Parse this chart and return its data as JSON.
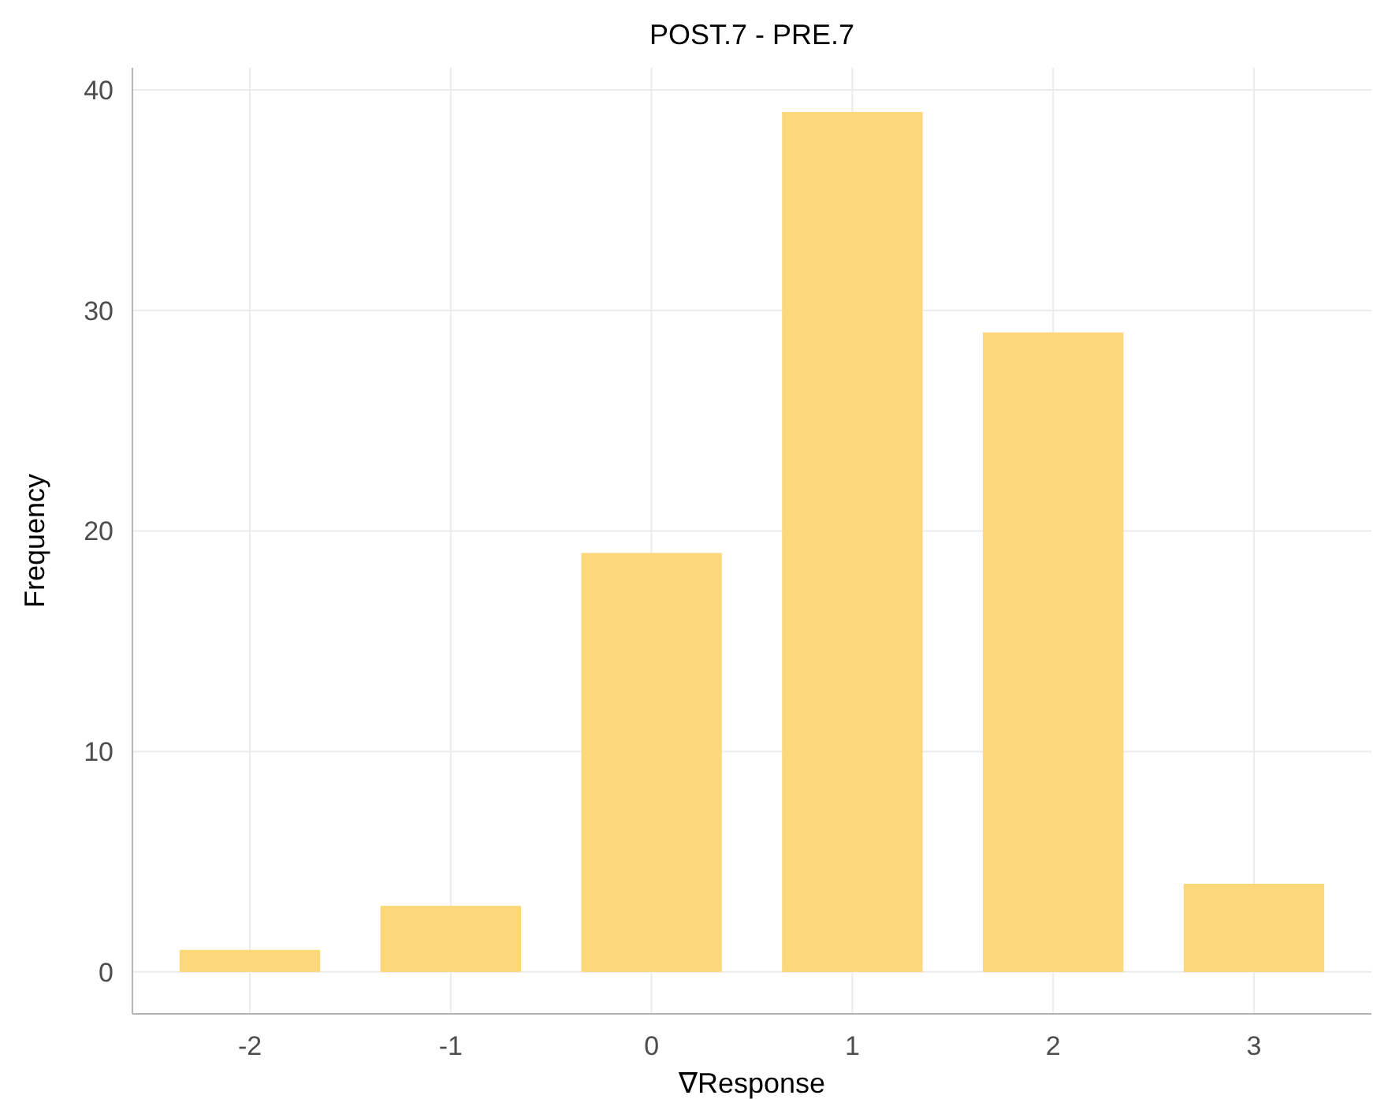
{
  "chart_data": {
    "type": "bar",
    "title": "POST.7 - PRE.7",
    "xlabel": "∇Response",
    "ylabel": "Frequency",
    "categories": [
      "-2",
      "-1",
      "0",
      "1",
      "2",
      "3"
    ],
    "values": [
      1,
      3,
      19,
      39,
      29,
      4
    ],
    "color": "#fdd87a",
    "ylim": [
      -1.9,
      41
    ],
    "yticks": [
      0,
      10,
      20,
      30,
      40
    ],
    "grid": true
  }
}
